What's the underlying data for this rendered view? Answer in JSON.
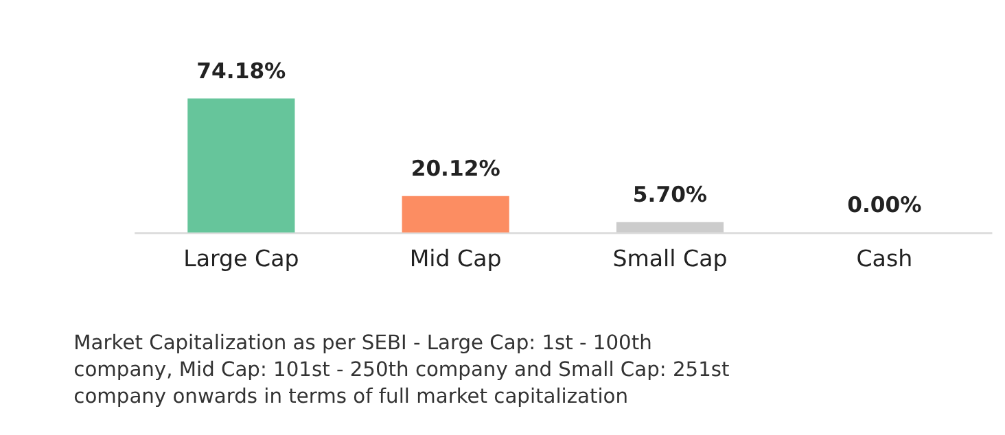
{
  "chart_data": {
    "type": "bar",
    "categories": [
      "Large Cap",
      "Mid Cap",
      "Small Cap",
      "Cash"
    ],
    "values": [
      74.18,
      20.12,
      5.7,
      0.0
    ],
    "colors": [
      "#66c59b",
      "#fc8d62",
      "#cccccc",
      "#cccccc"
    ],
    "value_labels": [
      "74.18%",
      "20.12%",
      "5.70%",
      "0.00%"
    ],
    "annotations": [
      "Market Capitalization as per SEBI - Large Cap: 1st - 100th company, Mid Cap: 101st - 250th company and Small Cap: 251st company onwards in terms of full market capitalization"
    ],
    "grid": false
  }
}
